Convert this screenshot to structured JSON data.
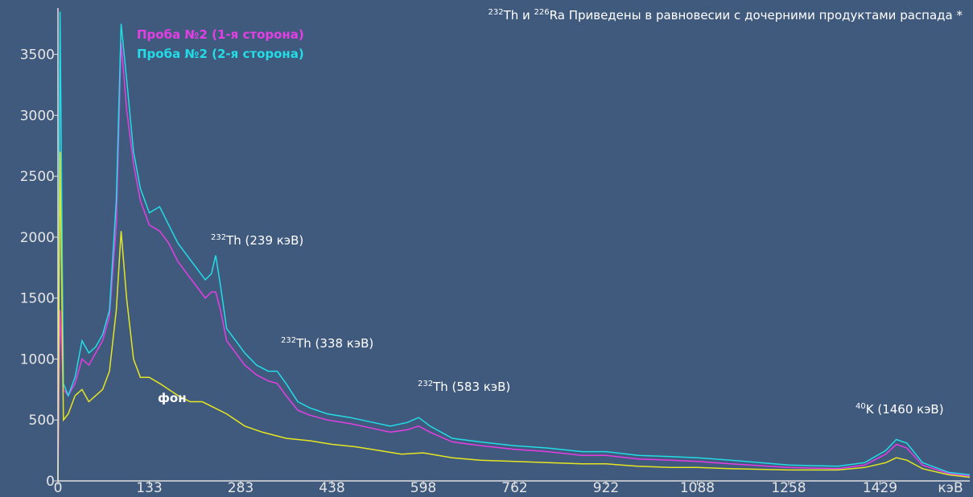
{
  "chart_data": {
    "type": "line",
    "title": {
      "sup1": "232",
      "part1": "Th и ",
      "sup2": "226",
      "part2": "Ra Приведены в равновесии с дочерними продуктами распада *"
    },
    "x_label": "кэВ",
    "xlim": [
      0,
      1600
    ],
    "xticks": [
      0,
      133,
      283,
      438,
      598,
      762,
      922,
      1088,
      1258,
      1429
    ],
    "ylim": [
      0,
      3880
    ],
    "yticks": [
      0,
      500,
      1000,
      1500,
      2000,
      2500,
      3000,
      3500
    ],
    "grid": false,
    "series": [
      {
        "name": "Проба №2 (1-я сторона)",
        "color": "#e43ee4",
        "x": [
          0,
          3,
          8,
          15,
          25,
          35,
          45,
          55,
          65,
          75,
          85,
          92,
          100,
          110,
          120,
          133,
          150,
          165,
          180,
          195,
          210,
          225,
          235,
          242,
          250,
          260,
          275,
          290,
          310,
          330,
          345,
          360,
          380,
          400,
          430,
          470,
          510,
          540,
          570,
          590,
          610,
          650,
          700,
          760,
          820,
          880,
          922,
          980,
          1040,
          1088,
          1150,
          1258,
          1350,
          1400,
          1440,
          1460,
          1480,
          1510,
          1560,
          1600
        ],
        "values": [
          0,
          1400,
          750,
          700,
          800,
          1000,
          950,
          1050,
          1150,
          1350,
          2100,
          3600,
          3050,
          2600,
          2300,
          2100,
          2050,
          1950,
          1800,
          1700,
          1600,
          1500,
          1550,
          1550,
          1400,
          1150,
          1050,
          950,
          870,
          820,
          800,
          700,
          580,
          540,
          500,
          470,
          430,
          400,
          420,
          450,
          400,
          320,
          290,
          260,
          240,
          210,
          210,
          180,
          170,
          160,
          140,
          110,
          100,
          130,
          220,
          300,
          270,
          130,
          60,
          40
        ]
      },
      {
        "name": "Проба №2 (2-я сторона)",
        "color": "#22dce6",
        "x": [
          0,
          3,
          8,
          15,
          25,
          35,
          45,
          55,
          65,
          75,
          85,
          92,
          100,
          110,
          120,
          133,
          150,
          165,
          180,
          195,
          210,
          225,
          235,
          242,
          250,
          260,
          275,
          290,
          310,
          330,
          345,
          360,
          380,
          400,
          430,
          470,
          510,
          540,
          570,
          590,
          610,
          650,
          700,
          760,
          820,
          880,
          922,
          980,
          1040,
          1088,
          1150,
          1258,
          1350,
          1400,
          1440,
          1460,
          1480,
          1510,
          1560,
          1600
        ],
        "values": [
          0,
          3850,
          800,
          700,
          850,
          1150,
          1050,
          1100,
          1200,
          1400,
          2300,
          3750,
          3300,
          2700,
          2400,
          2200,
          2250,
          2100,
          1950,
          1850,
          1750,
          1650,
          1700,
          1850,
          1600,
          1250,
          1150,
          1050,
          950,
          900,
          900,
          800,
          650,
          600,
          550,
          520,
          480,
          450,
          480,
          520,
          450,
          350,
          320,
          290,
          270,
          240,
          240,
          210,
          200,
          190,
          170,
          130,
          120,
          150,
          250,
          340,
          310,
          150,
          70,
          50
        ]
      },
      {
        "name": "фон",
        "color": "#e6e620",
        "x": [
          0,
          3,
          8,
          15,
          25,
          35,
          45,
          55,
          65,
          75,
          85,
          92,
          100,
          110,
          120,
          133,
          150,
          165,
          180,
          200,
          220,
          240,
          260,
          290,
          320,
          360,
          400,
          438,
          480,
          520,
          560,
          598,
          650,
          700,
          762,
          820,
          880,
          922,
          980,
          1040,
          1088,
          1150,
          1258,
          1350,
          1400,
          1440,
          1460,
          1480,
          1510,
          1560,
          1600
        ],
        "values": [
          0,
          2700,
          500,
          550,
          700,
          750,
          650,
          700,
          750,
          900,
          1400,
          2050,
          1500,
          1000,
          850,
          850,
          800,
          750,
          700,
          650,
          650,
          600,
          550,
          450,
          400,
          350,
          330,
          300,
          280,
          250,
          220,
          230,
          190,
          170,
          160,
          150,
          140,
          140,
          120,
          110,
          110,
          100,
          90,
          90,
          110,
          150,
          190,
          170,
          100,
          50,
          30
        ]
      }
    ],
    "annotations": [
      {
        "sup": "232",
        "text": "Th (239 кэВ)"
      },
      {
        "sup": "232",
        "text": "Th (338 кэВ)"
      },
      {
        "sup": "232",
        "text": "Th (583 кэВ)"
      },
      {
        "sup": "40",
        "text": "K (1460 кэВ)"
      }
    ]
  }
}
